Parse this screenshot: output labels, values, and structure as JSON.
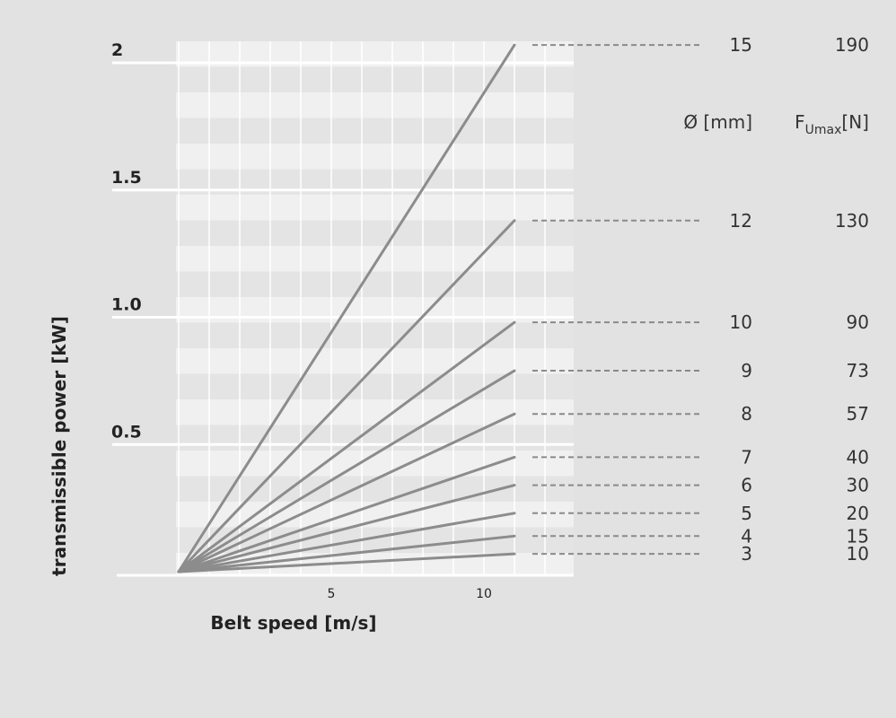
{
  "chart_data": {
    "type": "line",
    "xlabel": "Belt speed [m/s]",
    "ylabel": "transmissible power [kW]",
    "x_ticks": [
      5,
      10
    ],
    "y_ticks": [
      "0.5",
      "1.0",
      "1.5",
      "2"
    ],
    "xlim": [
      0,
      13
    ],
    "ylim": [
      0,
      2.1
    ],
    "diameter_header": "Ø [mm]",
    "force_header_main": "F",
    "force_header_sub": "Umax",
    "force_header_unit": "[N]",
    "series": [
      {
        "diameter": "15",
        "force": "190",
        "values": [
          [
            0,
            0
          ],
          [
            11,
            2.07
          ]
        ]
      },
      {
        "diameter": "12",
        "force": "130",
        "values": [
          [
            0,
            0
          ],
          [
            11,
            1.38
          ]
        ]
      },
      {
        "diameter": "10",
        "force": "90",
        "values": [
          [
            0,
            0
          ],
          [
            11,
            0.98
          ]
        ]
      },
      {
        "diameter": "9",
        "force": "73",
        "values": [
          [
            0,
            0
          ],
          [
            11,
            0.79
          ]
        ]
      },
      {
        "diameter": "8",
        "force": "57",
        "values": [
          [
            0,
            0
          ],
          [
            11,
            0.62
          ]
        ]
      },
      {
        "diameter": "7",
        "force": "40",
        "values": [
          [
            0,
            0
          ],
          [
            11,
            0.45
          ]
        ]
      },
      {
        "diameter": "6",
        "force": "30",
        "values": [
          [
            0,
            0
          ],
          [
            11,
            0.34
          ]
        ]
      },
      {
        "diameter": "5",
        "force": "20",
        "values": [
          [
            0,
            0
          ],
          [
            11,
            0.23
          ]
        ]
      },
      {
        "diameter": "4",
        "force": "15",
        "values": [
          [
            0,
            0
          ],
          [
            11,
            0.14
          ]
        ]
      },
      {
        "diameter": "3",
        "force": "10",
        "values": [
          [
            0,
            0
          ],
          [
            11,
            0.07
          ]
        ]
      }
    ]
  }
}
